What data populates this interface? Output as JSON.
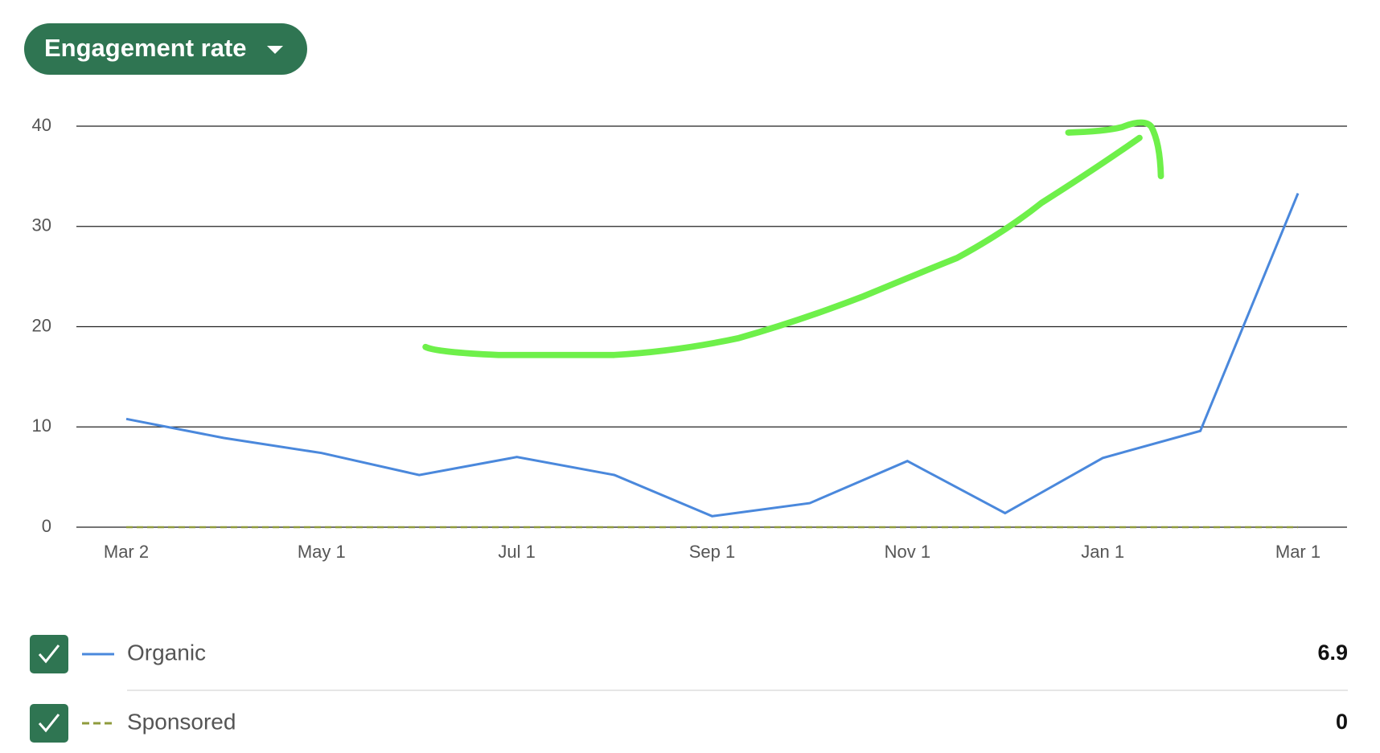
{
  "chart_data": {
    "type": "line",
    "title": "Engagement rate",
    "categories": [
      "Mar 2",
      null,
      "May 1",
      null,
      "Jul 1",
      null,
      "Sep 1",
      null,
      "Nov 1",
      null,
      "Jan 1",
      null,
      "Mar 1"
    ],
    "series": [
      {
        "name": "Organic",
        "color": "#4a88dc",
        "dashed": false,
        "summary": 6.9,
        "values": [
          10.8,
          8.9,
          7.4,
          5.2,
          7.0,
          5.2,
          1.1,
          2.4,
          6.6,
          1.4,
          6.9,
          9.6,
          33.3
        ]
      },
      {
        "name": "Sponsored",
        "color": "#8f9b3c",
        "dashed": true,
        "summary": 0,
        "values": [
          0,
          0,
          0,
          0,
          0,
          0,
          0,
          0,
          0,
          0,
          0,
          0,
          0
        ]
      }
    ],
    "ylim": [
      0,
      40
    ],
    "yticks": [
      0,
      10,
      20,
      30,
      40
    ],
    "grid": true
  }
}
